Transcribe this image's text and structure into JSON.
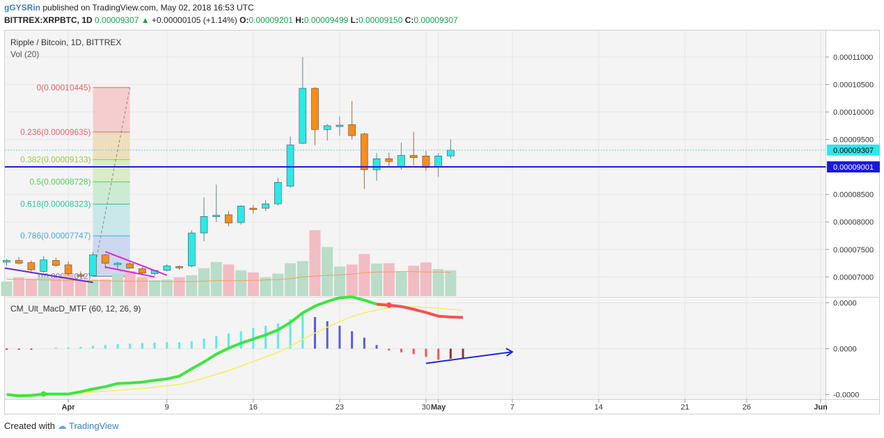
{
  "header": {
    "user": "gGYSRin",
    "published": "published on TradingView.com, May 02, 2018 16:53 UTC",
    "symbol": "BITTREX:XRPBTC, 1D",
    "last": "0.00009307",
    "change": "+0.00000105 (+1.14%)",
    "o_label": "O:",
    "o": "0.00009201",
    "h_label": "H:",
    "h": "0.00009499",
    "l_label": "L:",
    "l": "0.00009150",
    "c_label": "C:",
    "c": "0.00009307"
  },
  "pane1": {
    "title": "Ripple / Bitcoin, 1D, BITTREX",
    "vol_label": "Vol (20)"
  },
  "pane2": {
    "title": "CM_Ult_MacD_MTF (60, 12, 26, 9)"
  },
  "footer": {
    "created": "Created with",
    "brand": "TradingView"
  },
  "colors": {
    "up": "#2ee8e8",
    "down": "#ff8c1a",
    "vol_up": "#b9ddc8",
    "vol_down": "#f2bcc3",
    "hline": "#1a1adb",
    "macd_up": "#3fe43f",
    "macd_down": "#ff4d4d",
    "signal": "#f5f05a",
    "fib_pink": "#ffb3b3",
    "fib_green": "#b7ecc7"
  },
  "chart_data": [
    {
      "type": "candlestick",
      "title": "Ripple / Bitcoin, 1D, BITTREX",
      "price_ticks": [
        "0.00011000",
        "0.00010500",
        "0.00010000",
        "0.00009500",
        "0.00009000",
        "0.00008500",
        "0.00008000",
        "0.00007500",
        "0.00007000"
      ],
      "x_ticks": [
        "Apr",
        "9",
        "16",
        "23",
        "30",
        "May",
        "7",
        "14",
        "21",
        "26",
        "Jun"
      ],
      "last_price_label": "0.00009307",
      "horizontal_line_label": "0.00009001",
      "horizontal_line_value": 9.001e-05,
      "ylim": [
        6.65e-05,
        0.0001148
      ],
      "candles": [
        {
          "o": 7.27e-05,
          "h": 7.33e-05,
          "l": 7.2e-05,
          "c": 7.3e-05
        },
        {
          "o": 7.3e-05,
          "h": 7.36e-05,
          "l": 7.22e-05,
          "c": 7.25e-05
        },
        {
          "o": 7.26e-05,
          "h": 7.3e-05,
          "l": 7.1e-05,
          "c": 7.13e-05
        },
        {
          "o": 7.1e-05,
          "h": 7.38e-05,
          "l": 7.08e-05,
          "c": 7.31e-05
        },
        {
          "o": 7.3e-05,
          "h": 7.35e-05,
          "l": 7.18e-05,
          "c": 7.21e-05
        },
        {
          "o": 7.22e-05,
          "h": 7.28e-05,
          "l": 7.02e-05,
          "c": 7.06e-05
        },
        {
          "o": 7.04e-05,
          "h": 7.1e-05,
          "l": 6.99e-05,
          "c": 7.01e-05
        },
        {
          "o": 7.02e-05,
          "h": 7.45e-05,
          "l": 7e-05,
          "c": 7.4e-05
        },
        {
          "o": 7.4e-05,
          "h": 7.42e-05,
          "l": 7.15e-05,
          "c": 7.25e-05
        },
        {
          "o": 7.22e-05,
          "h": 7.28e-05,
          "l": 7.12e-05,
          "c": 7.25e-05
        },
        {
          "o": 7.24e-05,
          "h": 7.27e-05,
          "l": 7.15e-05,
          "c": 7.16e-05
        },
        {
          "o": 7.15e-05,
          "h": 7.18e-05,
          "l": 7.05e-05,
          "c": 7.07e-05
        },
        {
          "o": 7.06e-05,
          "h": 7.13e-05,
          "l": 7.03e-05,
          "c": 7.12e-05
        },
        {
          "o": 7.12e-05,
          "h": 7.23e-05,
          "l": 7.1e-05,
          "c": 7.2e-05
        },
        {
          "o": 7.19e-05,
          "h": 7.21e-05,
          "l": 7.13e-05,
          "c": 7.17e-05
        },
        {
          "o": 7.2e-05,
          "h": 7.85e-05,
          "l": 7.18e-05,
          "c": 7.8e-05
        },
        {
          "o": 7.8e-05,
          "h": 8.45e-05,
          "l": 7.65e-05,
          "c": 8.1e-05
        },
        {
          "o": 8.12e-05,
          "h": 8.68e-05,
          "l": 8e-05,
          "c": 8.12e-05
        },
        {
          "o": 8.13e-05,
          "h": 8.2e-05,
          "l": 7.92e-05,
          "c": 7.98e-05
        },
        {
          "o": 7.99e-05,
          "h": 8.3e-05,
          "l": 7.95e-05,
          "c": 8.29e-05
        },
        {
          "o": 8.25e-05,
          "h": 8.31e-05,
          "l": 8.15e-05,
          "c": 8.23e-05
        },
        {
          "o": 8.25e-05,
          "h": 8.4e-05,
          "l": 8.2e-05,
          "c": 8.33e-05
        },
        {
          "o": 8.33e-05,
          "h": 8.8e-05,
          "l": 8.3e-05,
          "c": 8.72e-05
        },
        {
          "o": 8.65e-05,
          "h": 9.55e-05,
          "l": 8.62e-05,
          "c": 9.4e-05
        },
        {
          "o": 9.43e-05,
          "h": 0.00011,
          "l": 9.42e-05,
          "c": 0.0001043
        },
        {
          "o": 0.0001043,
          "h": 0.0001045,
          "l": 9.4e-05,
          "c": 9.68e-05
        },
        {
          "o": 9.68e-05,
          "h": 9.78e-05,
          "l": 9.48e-05,
          "c": 9.75e-05
        },
        {
          "o": 9.76e-05,
          "h": 9.92e-05,
          "l": 9.57e-05,
          "c": 9.76e-05
        },
        {
          "o": 9.77e-05,
          "h": 0.000102,
          "l": 9.5e-05,
          "c": 9.57e-05
        },
        {
          "o": 9.6e-05,
          "h": 9.62e-05,
          "l": 8.6e-05,
          "c": 8.95e-05
        },
        {
          "o": 8.95e-05,
          "h": 9.25e-05,
          "l": 8.75e-05,
          "c": 9.15e-05
        },
        {
          "o": 9.15e-05,
          "h": 9.26e-05,
          "l": 9e-05,
          "c": 9.1e-05
        },
        {
          "o": 9e-05,
          "h": 9.44e-05,
          "l": 8.95e-05,
          "c": 9.21e-05
        },
        {
          "o": 9.21e-05,
          "h": 9.64e-05,
          "l": 9.03e-05,
          "c": 9.17e-05
        },
        {
          "o": 9.2e-05,
          "h": 9.29e-05,
          "l": 8.93e-05,
          "c": 8.99e-05
        },
        {
          "o": 9e-05,
          "h": 9.25e-05,
          "l": 8.82e-05,
          "c": 9.2e-05
        },
        {
          "o": 9.201e-05,
          "h": 9.499e-05,
          "l": 9.15e-05,
          "c": 9.307e-05
        }
      ],
      "volume_ma": [
        0.41,
        0.4,
        0.4,
        0.39,
        0.38,
        0.38,
        0.37,
        0.37,
        0.37,
        0.36,
        0.36,
        0.36,
        0.36,
        0.35,
        0.35,
        0.35,
        0.36,
        0.37,
        0.37,
        0.37,
        0.38,
        0.39,
        0.4,
        0.42,
        0.46,
        0.48,
        0.5,
        0.51,
        0.53,
        0.56,
        0.58,
        0.58,
        0.59,
        0.59,
        0.58,
        0.58,
        0.57
      ],
      "volumes": [
        0.35,
        0.45,
        0.42,
        0.45,
        0.44,
        0.55,
        0.38,
        0.4,
        0.4,
        0.53,
        0.6,
        0.45,
        0.38,
        0.4,
        0.45,
        0.5,
        0.67,
        0.82,
        0.76,
        0.62,
        0.57,
        0.45,
        0.54,
        0.79,
        0.84,
        1.58,
        1.18,
        0.71,
        0.76,
        1.01,
        0.78,
        0.79,
        0.58,
        0.73,
        0.81,
        0.65,
        0.62
      ],
      "fibonacci": [
        {
          "label": "0(0.00010445)",
          "value": 0.00010445
        },
        {
          "label": "0.236(0.00009635)",
          "value": 9.635e-05
        },
        {
          "label": "0.382(0.00009133)",
          "value": 9.133e-05
        },
        {
          "label": "0.5(0.00008728)",
          "value": 8.728e-05
        },
        {
          "label": "0.618(0.00008323)",
          "value": 8.323e-05
        },
        {
          "label": "0.786(0.00007747)",
          "value": 7.747e-05
        },
        {
          "label": "1(0.00007012)",
          "value": 7.012e-05
        }
      ]
    },
    {
      "type": "line",
      "title": "CM_Ult_MacD_MTF (60, 12, 26, 9)",
      "y_ticks": [
        "0.0000",
        "0.0000",
        "-0.0000"
      ],
      "ylim": [
        -1.1e-06,
        1.1e-06
      ],
      "histogram": [
        -0.02,
        -0.02,
        -0.02,
        0,
        0.02,
        0.03,
        0.04,
        0.06,
        0.08,
        0.1,
        0.11,
        0.12,
        0.13,
        0.14,
        0.14,
        0.16,
        0.22,
        0.28,
        0.33,
        0.38,
        0.45,
        0.5,
        0.55,
        0.64,
        0.76,
        0.69,
        0.6,
        0.5,
        0.38,
        0.24,
        0.08,
        -0.04,
        -0.08,
        -0.12,
        -0.18,
        -0.24,
        -0.22,
        -0.2
      ],
      "macd": [
        -1.0,
        -1.03,
        -1.02,
        -0.99,
        -0.99,
        -0.99,
        -0.94,
        -0.88,
        -0.83,
        -0.76,
        -0.75,
        -0.73,
        -0.69,
        -0.66,
        -0.6,
        -0.44,
        -0.29,
        -0.12,
        0.01,
        0.12,
        0.21,
        0.3,
        0.41,
        0.57,
        0.78,
        0.93,
        1.03,
        1.11,
        1.13,
        1.06,
        0.97,
        0.95,
        0.92,
        0.86,
        0.79,
        0.71,
        0.69,
        0.68
      ],
      "signal": [
        -1.0,
        -1.0,
        -1.0,
        -1.0,
        -1.0,
        -0.98,
        -0.97,
        -0.95,
        -0.93,
        -0.91,
        -0.89,
        -0.87,
        -0.84,
        -0.81,
        -0.78,
        -0.72,
        -0.64,
        -0.56,
        -0.48,
        -0.38,
        -0.28,
        -0.18,
        -0.08,
        0.05,
        0.2,
        0.34,
        0.47,
        0.59,
        0.7,
        0.78,
        0.85,
        0.89,
        0.92,
        0.91,
        0.9,
        0.88,
        0.86,
        0.84
      ]
    }
  ]
}
